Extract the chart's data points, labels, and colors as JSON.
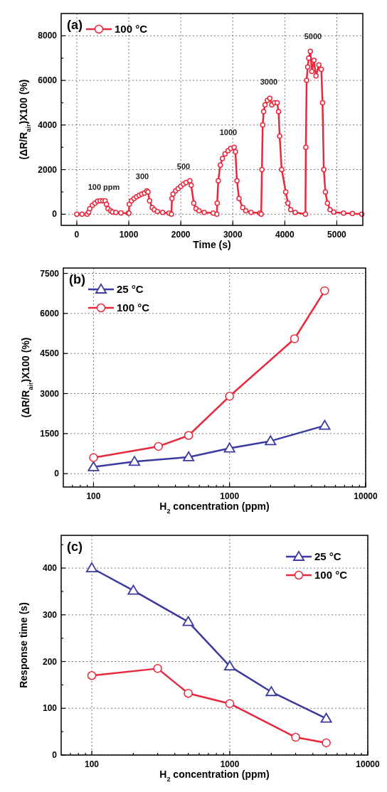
{
  "chart_data": [
    {
      "type": "line",
      "xlabel": "Time (s)",
      "ylabel": "(ΔR/R$_{air}$)X100 (%)",
      "xlim": [
        -300,
        5500
      ],
      "xticks": [
        0,
        1000,
        2000,
        3000,
        4000,
        5000
      ],
      "ylim": [
        -500,
        9000
      ],
      "yticks": [
        0,
        {
          "value": 1000,
          "label": null
        },
        2000,
        {
          "value": 3000,
          "label": null
        },
        4000,
        {
          "value": 5000,
          "label": null
        },
        6000,
        {
          "value": 7000,
          "label": null
        },
        8000
      ],
      "grid": true,
      "legend": "top left",
      "marker": "circle",
      "annotations": [
        "(a)",
        "100 ppm",
        "300",
        "500",
        "1000",
        "3000",
        "5000"
      ],
      "series": [
        {
          "name": "100 °C",
          "color": "#e8283c",
          "x": [
            0,
            100,
            200,
            230,
            250,
            300,
            350,
            400,
            450,
            500,
            544,
            570,
            600,
            650,
            686,
            750,
            850,
            993,
            1002,
            1010,
            1050,
            1100,
            1150,
            1200,
            1250,
            1300,
            1347,
            1370,
            1400,
            1450,
            1489,
            1550,
            1650,
            1773,
            1820,
            1830,
            1850,
            1900,
            1950,
            2000,
            2050,
            2100,
            2174,
            2200,
            2250,
            2292,
            2350,
            2450,
            2623,
            2694,
            2700,
            2720,
            2760,
            2800,
            2850,
            2908,
            2960,
            3025,
            3050,
            3080,
            3120,
            3191,
            3250,
            3350,
            3522,
            3546,
            3560,
            3575,
            3593,
            3620,
            3664,
            3711,
            3750,
            3800,
            3853,
            3880,
            3901,
            3940,
            4018,
            4060,
            4113,
            4200,
            4397,
            4405,
            4420,
            4440,
            4460,
            4491,
            4520,
            4560,
            4600,
            4655,
            4702,
            4725,
            4750,
            4780,
            4820,
            4870,
            4939,
            5128,
            5300,
            5482
          ],
          "values": [
            0,
            0,
            0,
            100,
            250,
            400,
            500,
            580,
            600,
            600,
            600,
            450,
            250,
            150,
            100,
            80,
            60,
            50,
            50,
            450,
            600,
            700,
            780,
            850,
            900,
            950,
            1050,
            1000,
            600,
            300,
            200,
            120,
            80,
            50,
            0,
            700,
            900,
            1050,
            1150,
            1250,
            1350,
            1420,
            1500,
            1300,
            500,
            250,
            150,
            80,
            50,
            0,
            500,
            1500,
            2200,
            2500,
            2700,
            2850,
            2950,
            3000,
            2800,
            1500,
            700,
            300,
            150,
            80,
            50,
            0,
            2000,
            4000,
            4600,
            4900,
            5100,
            5200,
            4900,
            5000,
            5000,
            4600,
            3500,
            2000,
            1000,
            500,
            200,
            80,
            0,
            3000,
            6000,
            6600,
            7000,
            7300,
            6400,
            6900,
            6200,
            6700,
            6500,
            5000,
            2000,
            1000,
            500,
            200,
            100,
            50,
            30,
            0
          ]
        }
      ]
    },
    {
      "type": "line",
      "xlabel": "H$_{2}$ concentration (ppm)",
      "ylabel": "(ΔR/R$_{air}$)X100 (%)",
      "log": "x",
      "xlim": [
        60,
        10000
      ],
      "xticks": [
        {
          "value": 70,
          "label": null
        },
        {
          "value": 80,
          "label": null
        },
        {
          "value": 90,
          "label": null
        },
        100,
        {
          "value": 200,
          "label": null
        },
        {
          "value": 300,
          "label": null
        },
        {
          "value": 400,
          "label": null
        },
        {
          "value": 500,
          "label": null
        },
        {
          "value": 600,
          "label": null
        },
        {
          "value": 700,
          "label": null
        },
        {
          "value": 800,
          "label": null
        },
        {
          "value": 900,
          "label": null
        },
        1000,
        {
          "value": 2000,
          "label": null
        },
        {
          "value": 3000,
          "label": null
        },
        {
          "value": 4000,
          "label": null
        },
        {
          "value": 5000,
          "label": null
        },
        {
          "value": 6000,
          "label": null
        },
        {
          "value": 7000,
          "label": null
        },
        {
          "value": 8000,
          "label": null
        },
        {
          "value": 9000,
          "label": null
        },
        10000
      ],
      "ylim": [
        -500,
        7700
      ],
      "yticks": [
        0,
        1500,
        3000,
        4500,
        6000,
        7500
      ],
      "grid": true,
      "legend": "top left",
      "annotations": [
        "(b)"
      ],
      "series": [
        {
          "name": "25 °C",
          "color": "#3a3aa0",
          "marker": "triangle",
          "x": [
            100,
            200,
            500,
            1000,
            2000,
            5000
          ],
          "values": [
            250,
            450,
            620,
            950,
            1220,
            1800
          ]
        },
        {
          "name": "100 °C",
          "color": "#e8283c",
          "marker": "circle",
          "x": [
            100,
            300,
            500,
            1000,
            3000,
            5000
          ],
          "values": [
            600,
            1020,
            1430,
            2900,
            5050,
            6850
          ]
        }
      ]
    },
    {
      "type": "line",
      "xlabel": "H$_{2}$ concentration (ppm)",
      "ylabel": "Response time (s)",
      "log": "x",
      "xlim": [
        60,
        10000
      ],
      "xticks": [
        {
          "value": 70,
          "label": null
        },
        {
          "value": 80,
          "label": null
        },
        {
          "value": 90,
          "label": null
        },
        100,
        {
          "value": 200,
          "label": null
        },
        {
          "value": 300,
          "label": null
        },
        {
          "value": 400,
          "label": null
        },
        {
          "value": 500,
          "label": null
        },
        {
          "value": 600,
          "label": null
        },
        {
          "value": 700,
          "label": null
        },
        {
          "value": 800,
          "label": null
        },
        {
          "value": 900,
          "label": null
        },
        1000,
        {
          "value": 2000,
          "label": null
        },
        {
          "value": 3000,
          "label": null
        },
        {
          "value": 4000,
          "label": null
        },
        {
          "value": 5000,
          "label": null
        },
        {
          "value": 6000,
          "label": null
        },
        {
          "value": 7000,
          "label": null
        },
        {
          "value": 8000,
          "label": null
        },
        {
          "value": 9000,
          "label": null
        },
        10000
      ],
      "ylim": [
        0,
        470
      ],
      "yticks": [
        0,
        {
          "value": 50,
          "label": null
        },
        100,
        {
          "value": 150,
          "label": null
        },
        200,
        {
          "value": 250,
          "label": null
        },
        300,
        {
          "value": 350,
          "label": null
        },
        400,
        {
          "value": 450,
          "label": null
        }
      ],
      "grid": true,
      "legend": "top right",
      "annotations": [
        "(c)"
      ],
      "series": [
        {
          "name": "25 °C",
          "color": "#3a3aa0",
          "marker": "triangle",
          "x": [
            100,
            200,
            500,
            1000,
            2000,
            5000
          ],
          "values": [
            400,
            352,
            285,
            190,
            135,
            78
          ]
        },
        {
          "name": "100 °C",
          "color": "#e8283c",
          "marker": "circle",
          "x": [
            100,
            300,
            500,
            1000,
            3000,
            5000
          ],
          "values": [
            170,
            185,
            132,
            110,
            38,
            26
          ]
        }
      ]
    }
  ]
}
